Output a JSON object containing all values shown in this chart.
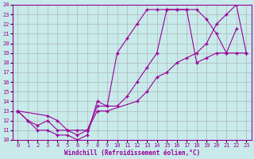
{
  "xlabel": "Windchill (Refroidissement éolien,°C)",
  "bg_color": "#c8eaea",
  "line_color": "#990099",
  "grid_color": "#aaaaaa",
  "xlim": [
    -0.5,
    23.5
  ],
  "ylim": [
    10,
    24
  ],
  "xticks": [
    0,
    1,
    2,
    3,
    4,
    5,
    6,
    7,
    8,
    9,
    10,
    11,
    12,
    13,
    14,
    15,
    16,
    17,
    18,
    19,
    20,
    21,
    22,
    23
  ],
  "yticks": [
    10,
    11,
    12,
    13,
    14,
    15,
    16,
    17,
    18,
    19,
    20,
    21,
    22,
    23,
    24
  ],
  "line1_x": [
    0,
    1,
    2,
    3,
    4,
    5,
    6,
    7,
    8,
    9,
    10,
    11,
    12,
    13,
    14,
    15,
    16,
    17,
    18,
    19,
    20,
    21,
    22
  ],
  "line1_y": [
    13,
    12,
    11,
    11,
    10.5,
    10.5,
    10,
    10.5,
    14,
    13.5,
    19.0,
    20.5,
    22,
    23.5,
    23.5,
    23.5,
    23.5,
    23.5,
    23.5,
    22.5,
    21,
    19,
    21.5
  ],
  "line2_x": [
    0,
    1,
    2,
    3,
    4,
    5,
    6,
    7,
    8,
    9,
    10,
    11,
    12,
    13,
    14,
    15,
    16,
    17,
    18,
    19,
    20,
    21,
    22,
    23
  ],
  "line2_y": [
    13,
    12,
    11.5,
    12,
    11,
    11,
    10.5,
    11,
    13.5,
    13.5,
    13.5,
    14.5,
    16,
    17.5,
    19,
    23.5,
    23.5,
    23.5,
    18,
    18.5,
    19.0,
    19.0,
    19.0,
    19.0
  ],
  "line3_x": [
    0,
    3,
    4,
    5,
    6,
    7,
    8,
    9,
    12,
    13,
    14,
    15,
    16,
    17,
    18,
    19,
    20,
    21,
    22,
    23
  ],
  "line3_y": [
    13,
    12.5,
    12,
    11,
    11,
    11,
    13,
    13,
    14,
    15,
    16.5,
    17,
    18,
    18.5,
    19,
    20,
    22,
    23,
    24,
    19
  ]
}
